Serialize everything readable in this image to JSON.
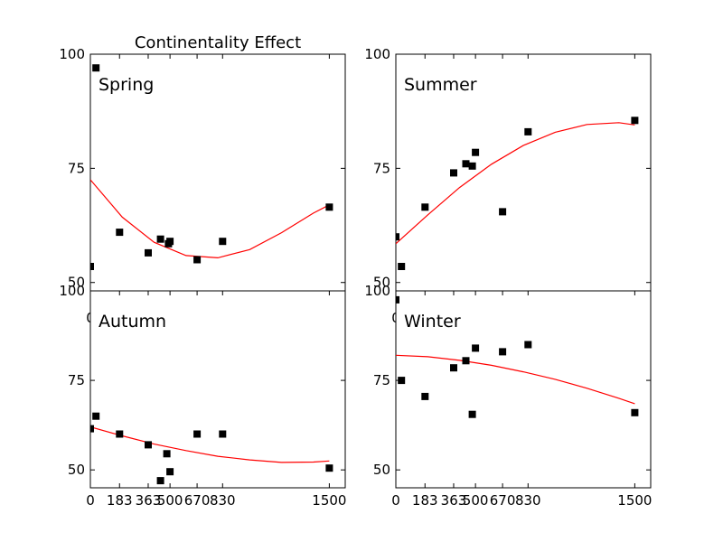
{
  "figure": {
    "title": "Continentality Effect"
  },
  "colors": {
    "marker": "#000000",
    "fit": "#ff0000"
  },
  "chart_data": [
    {
      "type": "scatter",
      "panel": "Spring",
      "xlim": [
        0,
        1600
      ],
      "ylim": [
        45,
        100
      ],
      "xticks": [
        0,
        183,
        363,
        500,
        670,
        830,
        1500
      ],
      "xtick_labels": [
        "0",
        "183",
        "363",
        "500",
        "670",
        "830",
        "1500"
      ],
      "yticks": [
        50,
        75,
        100
      ],
      "ytick_labels": [
        "50",
        "75",
        "100"
      ],
      "points": [
        [
          0,
          53.5
        ],
        [
          35,
          97
        ],
        [
          183,
          61
        ],
        [
          363,
          56.5
        ],
        [
          440,
          59.5
        ],
        [
          490,
          58.5
        ],
        [
          500,
          59
        ],
        [
          670,
          55
        ],
        [
          830,
          59
        ],
        [
          1500,
          66.5
        ]
      ],
      "fit": [
        [
          0,
          72.5
        ],
        [
          200,
          64.3
        ],
        [
          400,
          58.8
        ],
        [
          600,
          55.9
        ],
        [
          800,
          55.4
        ],
        [
          1000,
          57.2
        ],
        [
          1200,
          60.9
        ],
        [
          1400,
          65.2
        ],
        [
          1500,
          67
        ]
      ]
    },
    {
      "type": "scatter",
      "panel": "Summer",
      "xlim": [
        0,
        1600
      ],
      "ylim": [
        45,
        100
      ],
      "xticks": [
        0,
        183,
        363,
        500,
        670,
        830,
        1500
      ],
      "xtick_labels": [
        "0",
        "183",
        "363",
        "500",
        "670",
        "830",
        "1500"
      ],
      "yticks": [
        50,
        75,
        100
      ],
      "ytick_labels": [
        "50",
        "75",
        "100"
      ],
      "points": [
        [
          0,
          60
        ],
        [
          35,
          53.5
        ],
        [
          183,
          66.5
        ],
        [
          363,
          74
        ],
        [
          440,
          76
        ],
        [
          480,
          75.5
        ],
        [
          500,
          78.5
        ],
        [
          670,
          65.5
        ],
        [
          830,
          83
        ],
        [
          1500,
          85.5
        ]
      ],
      "fit": [
        [
          0,
          58.5
        ],
        [
          200,
          64.8
        ],
        [
          400,
          70.8
        ],
        [
          600,
          75.9
        ],
        [
          800,
          80
        ],
        [
          1000,
          82.9
        ],
        [
          1200,
          84.6
        ],
        [
          1400,
          85
        ],
        [
          1500,
          84.5
        ]
      ]
    },
    {
      "type": "scatter",
      "panel": "Autumn",
      "xlim": [
        0,
        1600
      ],
      "ylim": [
        45,
        100
      ],
      "xticks": [
        0,
        183,
        363,
        500,
        670,
        830,
        1500
      ],
      "xtick_labels": [
        "0",
        "183",
        "363",
        "500",
        "670",
        "830",
        "1500"
      ],
      "yticks": [
        50,
        75,
        100
      ],
      "ytick_labels": [
        "50",
        "75",
        "100"
      ],
      "points": [
        [
          0,
          61.5
        ],
        [
          35,
          65
        ],
        [
          183,
          60
        ],
        [
          363,
          57
        ],
        [
          440,
          47
        ],
        [
          480,
          54.5
        ],
        [
          500,
          49.5
        ],
        [
          670,
          60
        ],
        [
          830,
          60
        ],
        [
          1500,
          50.5
        ]
      ],
      "fit": [
        [
          0,
          62
        ],
        [
          200,
          59.5
        ],
        [
          400,
          57.2
        ],
        [
          600,
          55.4
        ],
        [
          800,
          53.8
        ],
        [
          1000,
          52.8
        ],
        [
          1200,
          52.1
        ],
        [
          1400,
          52.2
        ],
        [
          1500,
          52.5
        ]
      ]
    },
    {
      "type": "scatter",
      "panel": "Winter",
      "xlim": [
        0,
        1600
      ],
      "ylim": [
        45,
        100
      ],
      "xticks": [
        0,
        183,
        363,
        500,
        670,
        830,
        1500
      ],
      "xtick_labels": [
        "0",
        "183",
        "363",
        "500",
        "670",
        "830",
        "1500"
      ],
      "yticks": [
        50,
        75,
        100
      ],
      "ytick_labels": [
        "50",
        "75",
        "100"
      ],
      "points": [
        [
          0,
          97.5
        ],
        [
          35,
          75
        ],
        [
          183,
          70.5
        ],
        [
          363,
          78.5
        ],
        [
          440,
          80.5
        ],
        [
          480,
          65.5
        ],
        [
          500,
          84
        ],
        [
          670,
          83
        ],
        [
          830,
          85
        ],
        [
          1500,
          66
        ]
      ],
      "fit": [
        [
          0,
          82
        ],
        [
          200,
          81.6
        ],
        [
          400,
          80.6
        ],
        [
          600,
          79.2
        ],
        [
          800,
          77.4
        ],
        [
          1000,
          75.3
        ],
        [
          1200,
          72.8
        ],
        [
          1400,
          70
        ],
        [
          1500,
          68.5
        ]
      ]
    }
  ]
}
